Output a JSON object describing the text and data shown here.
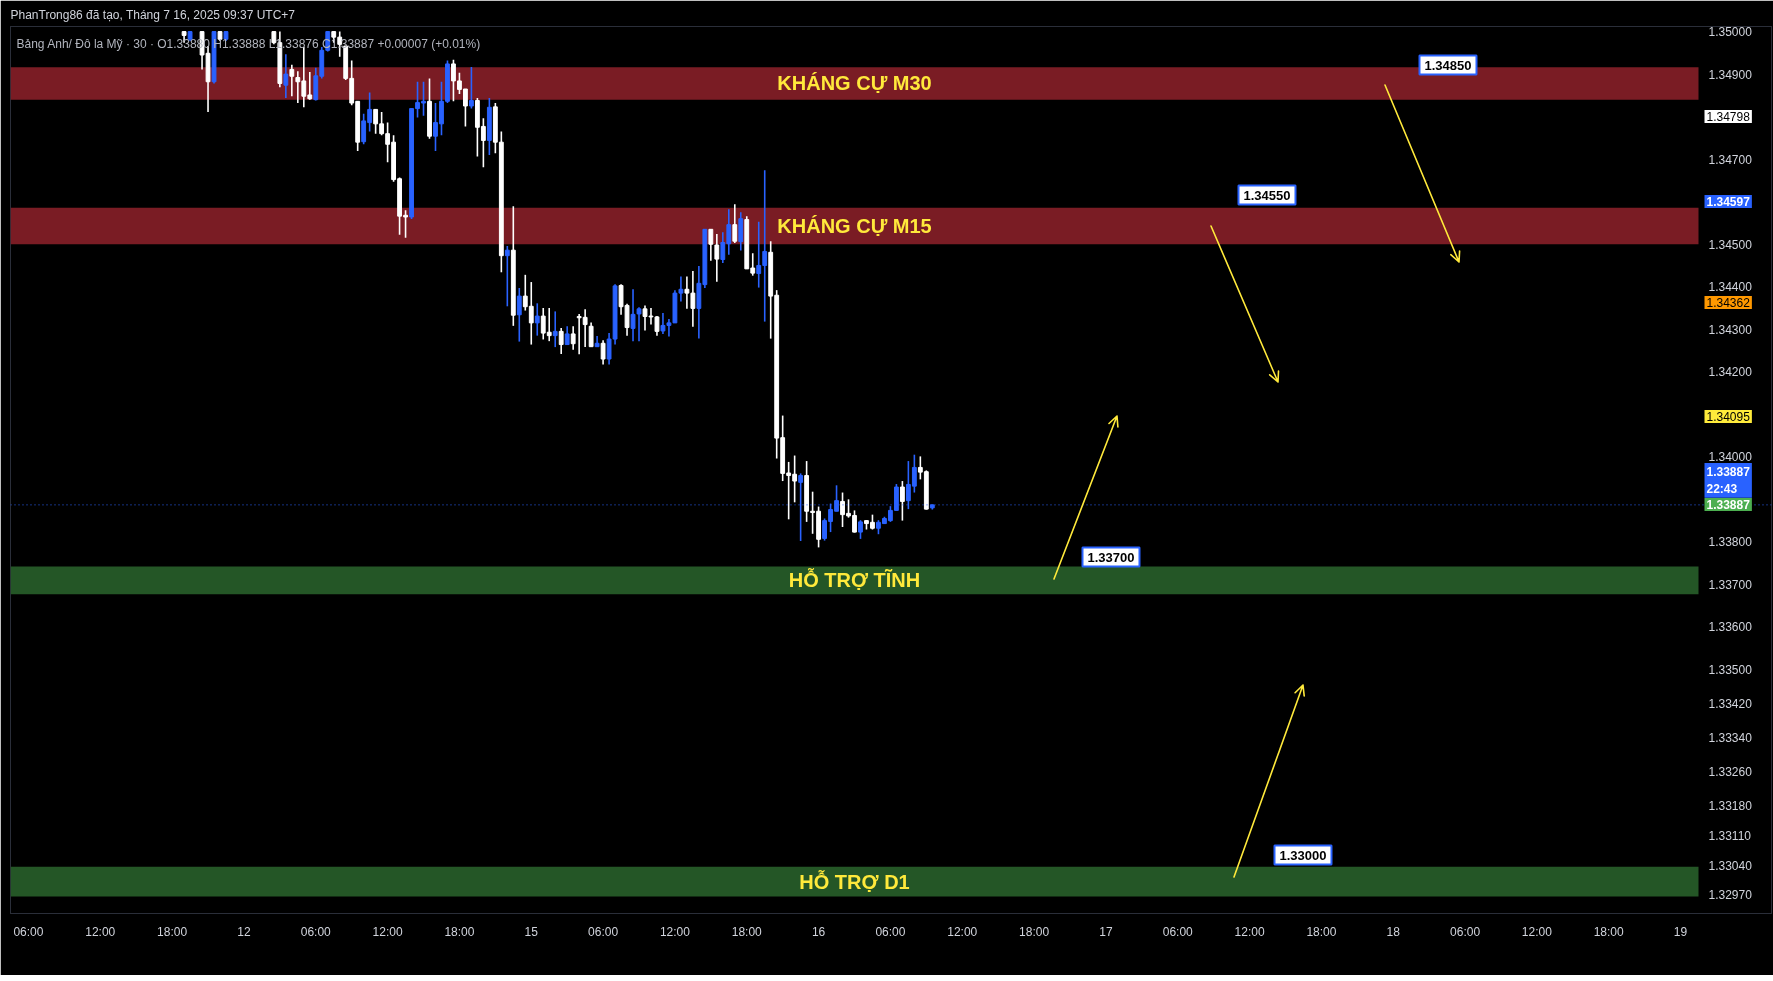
{
  "chart_data": {
    "type": "candlestick",
    "title": "PhanTrong86 đã tạo, Tháng 7 16, 2025 09:37 UTC+7",
    "annotations": [
      "Bảng Anh/ Đô la Mỹ · 30 · O1.33880 H1.33888 L1.33876 C1.33887 +0.00007 (+0.01%)",
      "1.34850",
      "1.34550",
      "1.33700",
      "1.33000",
      "1.34798",
      "1.34597",
      "1.34362",
      "1.34095",
      "1.33887"
    ],
    "categories": [
      null,
      null,
      "06:00",
      null,
      null,
      null,
      null,
      null,
      null,
      null,
      null,
      null,
      null,
      null,
      "12:00",
      null,
      null,
      null,
      null,
      null,
      null,
      null,
      null,
      null,
      null,
      null,
      "18:00",
      null,
      null,
      null,
      null,
      null,
      null,
      null,
      null,
      null,
      null,
      null,
      "12",
      null,
      null,
      null,
      null,
      null,
      null,
      null,
      null,
      null,
      null,
      null,
      "06:00",
      null,
      null,
      null,
      null,
      null,
      null,
      null,
      null,
      null,
      null,
      null,
      "12:00",
      null,
      null,
      null,
      null,
      null,
      null,
      null,
      null,
      null,
      null,
      null,
      "18:00",
      null,
      null,
      null,
      null,
      null,
      null,
      null,
      null,
      null,
      null,
      null,
      "15",
      null,
      null,
      null,
      null,
      null,
      null,
      null,
      null,
      null,
      null,
      null,
      "06:00",
      null,
      null,
      null,
      null,
      null,
      null,
      null,
      null,
      null,
      null,
      null,
      "12:00",
      null,
      null,
      null,
      null,
      null,
      null,
      null,
      null,
      null,
      null,
      null,
      "18:00",
      null,
      null,
      null,
      null,
      null,
      null,
      null,
      null,
      null,
      null,
      null,
      "16",
      null,
      null,
      null,
      null,
      null,
      null,
      null,
      null,
      null,
      null,
      null,
      "06:00",
      null,
      null,
      null,
      null,
      null,
      null,
      null,
      null,
      null,
      null,
      null,
      "12:00",
      null,
      null,
      null,
      null,
      null,
      null,
      null,
      null,
      null,
      null,
      null,
      "18:00",
      null,
      null,
      null,
      null,
      null,
      null,
      null,
      null,
      null,
      null,
      null,
      "17",
      null,
      null,
      null,
      null,
      null,
      null,
      null,
      null,
      null,
      null,
      null,
      "06:00",
      null,
      null,
      null,
      null,
      null,
      null,
      null,
      null,
      null,
      null,
      null,
      "12:00",
      null,
      null,
      null,
      null,
      null,
      null,
      null,
      null,
      null,
      null,
      null,
      "18:00",
      null,
      null,
      null,
      null,
      null,
      null,
      null,
      null,
      null,
      null,
      null,
      "18",
      null,
      null,
      null,
      null,
      null,
      null,
      null,
      null,
      null,
      null,
      null,
      "06:00",
      null,
      null,
      null,
      null,
      null,
      null,
      null,
      null,
      null,
      null,
      null,
      "12:00",
      null,
      null,
      null,
      null,
      null,
      null,
      null,
      null,
      null,
      null,
      null,
      "18:00",
      null,
      null,
      null,
      null,
      null,
      null,
      null,
      null,
      null,
      null,
      null,
      "19",
      null,
      null
    ],
    "ohlc": [
      null,
      null,
      null,
      null,
      null,
      null,
      null,
      null,
      null,
      null,
      null,
      null,
      null,
      null,
      null,
      null,
      null,
      null,
      null,
      null,
      null,
      null,
      null,
      null,
      null,
      null,
      null,
      null,
      [
        1.35,
        1.35,
        1.34974,
        1.34991
      ],
      [
        1.34982,
        1.35,
        1.34978,
        1.35
      ],
      null,
      [
        1.35,
        1.35,
        1.34911,
        1.34945
      ],
      [
        1.34949,
        1.34966,
        1.34811,
        1.34882
      ],
      [
        1.34882,
        1.35,
        1.34878,
        1.35
      ],
      [
        1.35,
        1.35,
        1.34978,
        1.34982
      ],
      [
        1.34982,
        1.35,
        1.34978,
        1.35
      ],
      null,
      null,
      null,
      null,
      null,
      null,
      null,
      [
        1.35,
        1.35,
        1.3497,
        1.34974
      ],
      [
        1.34974,
        1.35,
        1.34869,
        1.34878
      ],
      [
        1.34874,
        1.34947,
        1.34844,
        1.349
      ],
      [
        1.34911,
        1.34922,
        1.34848,
        1.34895
      ],
      [
        1.34892,
        1.34907,
        1.34832,
        1.34882
      ],
      [
        1.34884,
        1.34964,
        1.34822,
        1.34848
      ],
      [
        1.34851,
        1.34905,
        1.3484,
        1.34842
      ],
      [
        1.3484,
        1.34915,
        1.34838,
        1.34896
      ],
      [
        1.34895,
        1.34964,
        1.3489,
        1.34956
      ],
      [
        1.34956,
        1.35,
        1.34953,
        1.35
      ],
      [
        1.35,
        1.35,
        1.34974,
        1.34987
      ],
      [
        1.34987,
        1.35,
        1.34941,
        1.3497
      ],
      [
        1.34966,
        1.34966,
        1.34886,
        1.3489
      ],
      [
        1.3489,
        1.34932,
        1.34827,
        1.34832
      ],
      [
        1.34836,
        1.34836,
        1.34719,
        1.3474
      ],
      [
        1.34741,
        1.34807,
        1.34735,
        1.3479
      ],
      [
        1.34786,
        1.34857,
        1.34765,
        1.34817
      ],
      [
        1.34817,
        1.34817,
        1.3476,
        1.34783
      ],
      [
        1.34783,
        1.34811,
        1.34756,
        1.3476
      ],
      [
        1.3476,
        1.34786,
        1.34693,
        1.34735
      ],
      [
        1.3474,
        1.34756,
        1.34647,
        1.34652
      ],
      [
        1.34654,
        1.34657,
        1.34522,
        1.34566
      ],
      [
        1.34568,
        1.3458,
        1.34515,
        1.34564
      ],
      [
        1.34564,
        1.34819,
        1.34559,
        1.34819
      ],
      [
        1.34819,
        1.34882,
        1.34798,
        1.34833
      ],
      [
        1.34832,
        1.34882,
        1.34802,
        1.34836
      ],
      [
        1.34836,
        1.3489,
        1.34748,
        1.34754
      ],
      [
        1.34754,
        1.34832,
        1.34719,
        1.34786
      ],
      [
        1.34783,
        1.34882,
        1.34756,
        1.34836
      ],
      [
        1.34836,
        1.34932,
        1.34832,
        1.34924
      ],
      [
        1.34924,
        1.34934,
        1.34836,
        1.34884
      ],
      [
        1.34884,
        1.34903,
        1.34853,
        1.34864
      ],
      [
        1.34865,
        1.34865,
        1.34777,
        1.34825
      ],
      [
        1.34825,
        1.34917,
        1.34819,
        1.34838
      ],
      [
        1.34838,
        1.34844,
        1.34706,
        1.34775
      ],
      [
        1.34777,
        1.34796,
        1.34681,
        1.34744
      ],
      [
        1.34744,
        1.34844,
        1.3471,
        1.34822
      ],
      [
        1.34823,
        1.34832,
        1.34714,
        1.3474
      ],
      [
        1.3474,
        1.34765,
        1.34434,
        1.34473
      ],
      [
        1.34473,
        1.34496,
        1.34354,
        1.34486
      ],
      [
        1.34486,
        1.34589,
        1.34308,
        1.34333
      ],
      [
        1.34334,
        1.34397,
        1.34271,
        1.34378
      ],
      [
        1.34378,
        1.34428,
        1.34344,
        1.34353
      ],
      [
        1.34354,
        1.34411,
        1.34264,
        1.34315
      ],
      [
        1.34315,
        1.34361,
        1.34285,
        1.34331
      ],
      [
        1.34331,
        1.3435,
        1.34276,
        1.34291
      ],
      [
        1.34293,
        1.3435,
        1.34272,
        1.34285
      ],
      [
        1.34285,
        1.34342,
        1.34258,
        1.34295
      ],
      [
        1.34295,
        1.34303,
        1.34242,
        1.34264
      ],
      [
        1.34264,
        1.34307,
        1.34264,
        1.34289
      ],
      [
        1.34289,
        1.34307,
        1.34252,
        1.34266
      ],
      [
        1.3433,
        1.34336,
        1.34241,
        1.34327
      ],
      [
        1.34328,
        1.34347,
        1.34258,
        1.34311
      ],
      [
        1.34307,
        1.34316,
        1.34258,
        1.34259
      ],
      [
        1.34259,
        1.34284,
        1.34258,
        1.34267
      ],
      [
        1.34267,
        1.34274,
        1.34217,
        1.3423
      ],
      [
        1.3423,
        1.34291,
        1.34217,
        1.34277
      ],
      [
        1.34277,
        1.34406,
        1.34264,
        1.34402
      ],
      [
        1.34403,
        1.34406,
        1.34334,
        1.34353
      ],
      [
        1.34356,
        1.3436,
        1.34285,
        1.34304
      ],
      [
        1.34302,
        1.34394,
        1.34272,
        1.34335
      ],
      [
        1.34336,
        1.34352,
        1.34272,
        1.34348
      ],
      [
        1.34348,
        1.34356,
        1.34297,
        1.3433
      ],
      [
        1.34331,
        1.3435,
        1.34311,
        1.34329
      ],
      [
        1.34329,
        1.34331,
        1.34285,
        1.34295
      ],
      [
        1.34296,
        1.34338,
        1.34289,
        1.34309
      ],
      [
        1.34309,
        1.34324,
        1.34283,
        1.34315
      ],
      [
        1.34315,
        1.34392,
        1.34315,
        1.34385
      ],
      [
        1.34385,
        1.34424,
        1.34365,
        1.34394
      ],
      [
        1.34394,
        1.34424,
        1.34348,
        1.34385
      ],
      [
        1.34385,
        1.34437,
        1.34306,
        1.34349
      ],
      [
        1.34349,
        1.34449,
        1.34278,
        1.34408
      ],
      [
        1.34405,
        1.34535,
        1.34397,
        1.34535
      ],
      [
        1.34535,
        1.34535,
        1.34461,
        1.345
      ],
      [
        1.34498,
        1.34524,
        1.34412,
        1.34465
      ],
      [
        1.34464,
        1.34528,
        1.34456,
        1.34504
      ],
      [
        1.34501,
        1.34582,
        1.34475,
        1.34546
      ],
      [
        1.34546,
        1.34594,
        1.34503,
        1.34507
      ],
      [
        1.34506,
        1.34575,
        1.34485,
        1.3456
      ],
      [
        1.34558,
        1.34566,
        1.34442,
        1.34442
      ],
      [
        1.34444,
        1.34479,
        1.34426,
        1.34432
      ],
      [
        1.34431,
        1.34553,
        1.34398,
        1.3445
      ],
      [
        1.3445,
        1.34674,
        1.34318,
        1.34483
      ],
      [
        1.34481,
        1.34507,
        1.34278,
        1.34378
      ],
      [
        1.3438,
        1.34392,
        1.33996,
        1.34044
      ],
      [
        1.34045,
        1.34097,
        1.33943,
        1.33961
      ],
      [
        1.33962,
        1.33988,
        1.33853,
        1.33956
      ],
      [
        1.33959,
        1.34003,
        1.33893,
        1.33943
      ],
      [
        1.3394,
        1.33961,
        1.33802,
        1.33956
      ],
      [
        1.33956,
        1.3399,
        1.33847,
        1.33872
      ],
      [
        1.33872,
        1.33918,
        1.33819,
        1.33869
      ],
      [
        1.33872,
        1.33883,
        1.33787,
        1.33806
      ],
      [
        1.33808,
        1.33855,
        1.33803,
        1.3385
      ],
      [
        1.33848,
        1.3389,
        1.33823,
        1.33876
      ],
      [
        1.33872,
        1.33933,
        1.33872,
        1.33897
      ],
      [
        1.33895,
        1.33916,
        1.33835,
        1.33864
      ],
      [
        1.33867,
        1.339,
        1.33857,
        1.33861
      ],
      [
        1.33862,
        1.33874,
        1.33822,
        1.33823
      ],
      [
        1.33823,
        1.33851,
        1.33807,
        1.33847
      ],
      [
        1.3385,
        1.33851,
        1.33829,
        1.33843
      ],
      [
        1.33846,
        1.33864,
        1.33829,
        1.33832
      ],
      [
        1.33832,
        1.33851,
        1.33818,
        1.33846
      ],
      [
        1.33843,
        1.33859,
        1.33843,
        1.33855
      ],
      [
        1.3385,
        1.33884,
        1.33847,
        1.33874
      ],
      [
        1.33874,
        1.33936,
        1.33874,
        1.33929
      ],
      [
        1.33929,
        1.33943,
        1.3385,
        1.33895
      ],
      [
        1.33897,
        1.3399,
        1.33877,
        1.33935
      ],
      [
        1.33931,
        1.34005,
        1.33916,
        1.33975
      ],
      [
        1.33975,
        1.34001,
        1.33947,
        1.33964
      ],
      [
        1.33965,
        1.33968,
        1.33876,
        1.33877
      ],
      [
        1.3388,
        1.33888,
        1.33876,
        1.33887
      ],
      null,
      null,
      null,
      null,
      null,
      null,
      null,
      null,
      null,
      null,
      null,
      null,
      null,
      null,
      null,
      null,
      null,
      null,
      null,
      null,
      null,
      null,
      null,
      null,
      null,
      null,
      null,
      null,
      null,
      null,
      null,
      null,
      null,
      null,
      null,
      null,
      null,
      null,
      null,
      null,
      null,
      null,
      null,
      null,
      null,
      null,
      null,
      null,
      null,
      null,
      null,
      null,
      null,
      null,
      null,
      null,
      null,
      null,
      null,
      null,
      null,
      null,
      null,
      null,
      null,
      null,
      null,
      null,
      null,
      null,
      null,
      null,
      null,
      null,
      null,
      null,
      null,
      null,
      null,
      null,
      null,
      null,
      null,
      null,
      null,
      null,
      null,
      null,
      null,
      null,
      null,
      null,
      null,
      null,
      null,
      null,
      null,
      null,
      null,
      null,
      null,
      null,
      null,
      null,
      null,
      null,
      null,
      null,
      null,
      null,
      null,
      null,
      null,
      null,
      null,
      null,
      null,
      null,
      null,
      null,
      null,
      null,
      null,
      null,
      null,
      null,
      null
    ],
    "colors": [
      null,
      null,
      null,
      null,
      null,
      null,
      null,
      null,
      null,
      null,
      null,
      null,
      null,
      null,
      null,
      null,
      null,
      null,
      null,
      null,
      null,
      null,
      null,
      null,
      null,
      null,
      null,
      null,
      "#ffffff",
      "#2962ff",
      null,
      "#ffffff",
      "#ffffff",
      "#2962ff",
      "#ffffff",
      "#2962ff",
      null,
      null,
      null,
      null,
      null,
      null,
      null,
      "#ffffff",
      "#ffffff",
      "#2962ff",
      "#ffffff",
      "#ffffff",
      "#ffffff",
      "#ffffff",
      "#2962ff",
      "#2962ff",
      "#2962ff",
      "#ffffff",
      "#ffffff",
      "#ffffff",
      "#ffffff",
      "#ffffff",
      "#2962ff",
      "#2962ff",
      "#ffffff",
      "#ffffff",
      "#ffffff",
      "#ffffff",
      "#ffffff",
      "#ffffff",
      "#2962ff",
      "#2962ff",
      "#2962ff",
      "#ffffff",
      "#2962ff",
      "#2962ff",
      "#2962ff",
      "#ffffff",
      "#ffffff",
      "#ffffff",
      "#2962ff",
      "#ffffff",
      "#ffffff",
      "#2962ff",
      "#ffffff",
      "#ffffff",
      "#2962ff",
      "#ffffff",
      "#2962ff",
      "#ffffff",
      "#ffffff",
      "#2962ff",
      "#ffffff",
      "#ffffff",
      "#2962ff",
      "#ffffff",
      "#2962ff",
      "#ffffff",
      "#ffffff",
      "#ffffff",
      "#ffffff",
      "#2962ff",
      "#ffffff",
      "#2962ff",
      "#2962ff",
      "#ffffff",
      "#ffffff",
      "#2962ff",
      "#2962ff",
      "#ffffff",
      "#ffffff",
      "#ffffff",
      "#2962ff",
      "#2962ff",
      "#2962ff",
      "#2962ff",
      "#ffffff",
      "#ffffff",
      "#2962ff",
      "#2962ff",
      "#ffffff",
      "#ffffff",
      "#2962ff",
      "#2962ff",
      "#ffffff",
      "#2962ff",
      "#ffffff",
      "#ffffff",
      "#2962ff",
      "#2962ff",
      "#ffffff",
      "#ffffff",
      "#ffffff",
      "#ffffff",
      "#ffffff",
      "#2962ff",
      "#ffffff",
      "#ffffff",
      "#ffffff",
      "#2962ff",
      "#2962ff",
      "#2962ff",
      "#ffffff",
      "#ffffff",
      "#ffffff",
      "#2962ff",
      "#ffffff",
      "#ffffff",
      "#2962ff",
      "#2962ff",
      "#2962ff",
      "#2962ff",
      "#ffffff",
      "#2962ff",
      "#2962ff",
      "#ffffff",
      "#ffffff",
      "#2962ff",
      null,
      null,
      null,
      null,
      null,
      null,
      null,
      null,
      null,
      null,
      null,
      null,
      null,
      null,
      null,
      null,
      null,
      null,
      null,
      null,
      null,
      null,
      null,
      null,
      null,
      null,
      null,
      null,
      null,
      null,
      null,
      null,
      null,
      null,
      null,
      null,
      null,
      null,
      null,
      null,
      null,
      null,
      null,
      null,
      null,
      null,
      null,
      null,
      null,
      null,
      null,
      null,
      null,
      null,
      null,
      null,
      null,
      null,
      null,
      null,
      null,
      null,
      null,
      null,
      null,
      null,
      null,
      null,
      null,
      null,
      null,
      null,
      null,
      null,
      null,
      null,
      null,
      null,
      null,
      null,
      null,
      null,
      null,
      null,
      null,
      null,
      null,
      null,
      null,
      null,
      null,
      null,
      null,
      null,
      null,
      null,
      null,
      null,
      null,
      null,
      null,
      null,
      null,
      null,
      null,
      null,
      null,
      null,
      null,
      null,
      null,
      null,
      null,
      null,
      null,
      null,
      null,
      null,
      null,
      null,
      null,
      null,
      null,
      null,
      null,
      null,
      null
    ],
    "ylim": [
      1.32926,
      1.35012
    ],
    "yticks": [
      {
        "value": 1.35,
        "label": "1.35000"
      },
      {
        "value": 1.349,
        "label": "1.34900"
      },
      {
        "value": 1.347,
        "label": "1.34700"
      },
      {
        "value": 1.345,
        "label": "1.34500"
      },
      {
        "value": 1.344,
        "label": "1.34400"
      },
      {
        "value": 1.343,
        "label": "1.34300"
      },
      {
        "value": 1.342,
        "label": "1.34200"
      },
      {
        "value": 1.34,
        "label": "1.34000"
      },
      {
        "value": 1.338,
        "label": "1.33800"
      },
      {
        "value": 1.337,
        "label": "1.33700"
      },
      {
        "value": 1.336,
        "label": "1.33600"
      },
      {
        "value": 1.335,
        "label": "1.33500"
      },
      {
        "value": 1.3342,
        "label": "1.33420"
      },
      {
        "value": 1.3334,
        "label": "1.33340"
      },
      {
        "value": 1.3326,
        "label": "1.33260"
      },
      {
        "value": 1.3318,
        "label": "1.33180"
      },
      {
        "value": 1.3311,
        "label": "1.33110"
      },
      {
        "value": 1.3304,
        "label": "1.33040"
      },
      {
        "value": 1.3297,
        "label": "1.32970"
      }
    ],
    "bands": [
      {
        "axis": "y",
        "from": 1.3484,
        "to": 1.34916,
        "label": "KHÁNG CỰ M30",
        "color": "#7a1c24"
      },
      {
        "axis": "y",
        "from": 1.345,
        "to": 1.34586,
        "label": "KHÁNG CỰ M15",
        "color": "#7a1c24"
      },
      {
        "axis": "y",
        "from": 1.33677,
        "to": 1.33742,
        "label": "HỖ TRỢ TĨNH",
        "color": "#245626"
      },
      {
        "axis": "y",
        "from": 1.32966,
        "to": 1.33036,
        "label": "HỖ TRỢ D1",
        "color": "#245626"
      }
    ],
    "ref_lines": [
      {
        "axis": "y",
        "value": 1.33887,
        "label": "1.33887\n22:43",
        "color": "#2962ff",
        "line_style": "dotted"
      }
    ]
  }
}
